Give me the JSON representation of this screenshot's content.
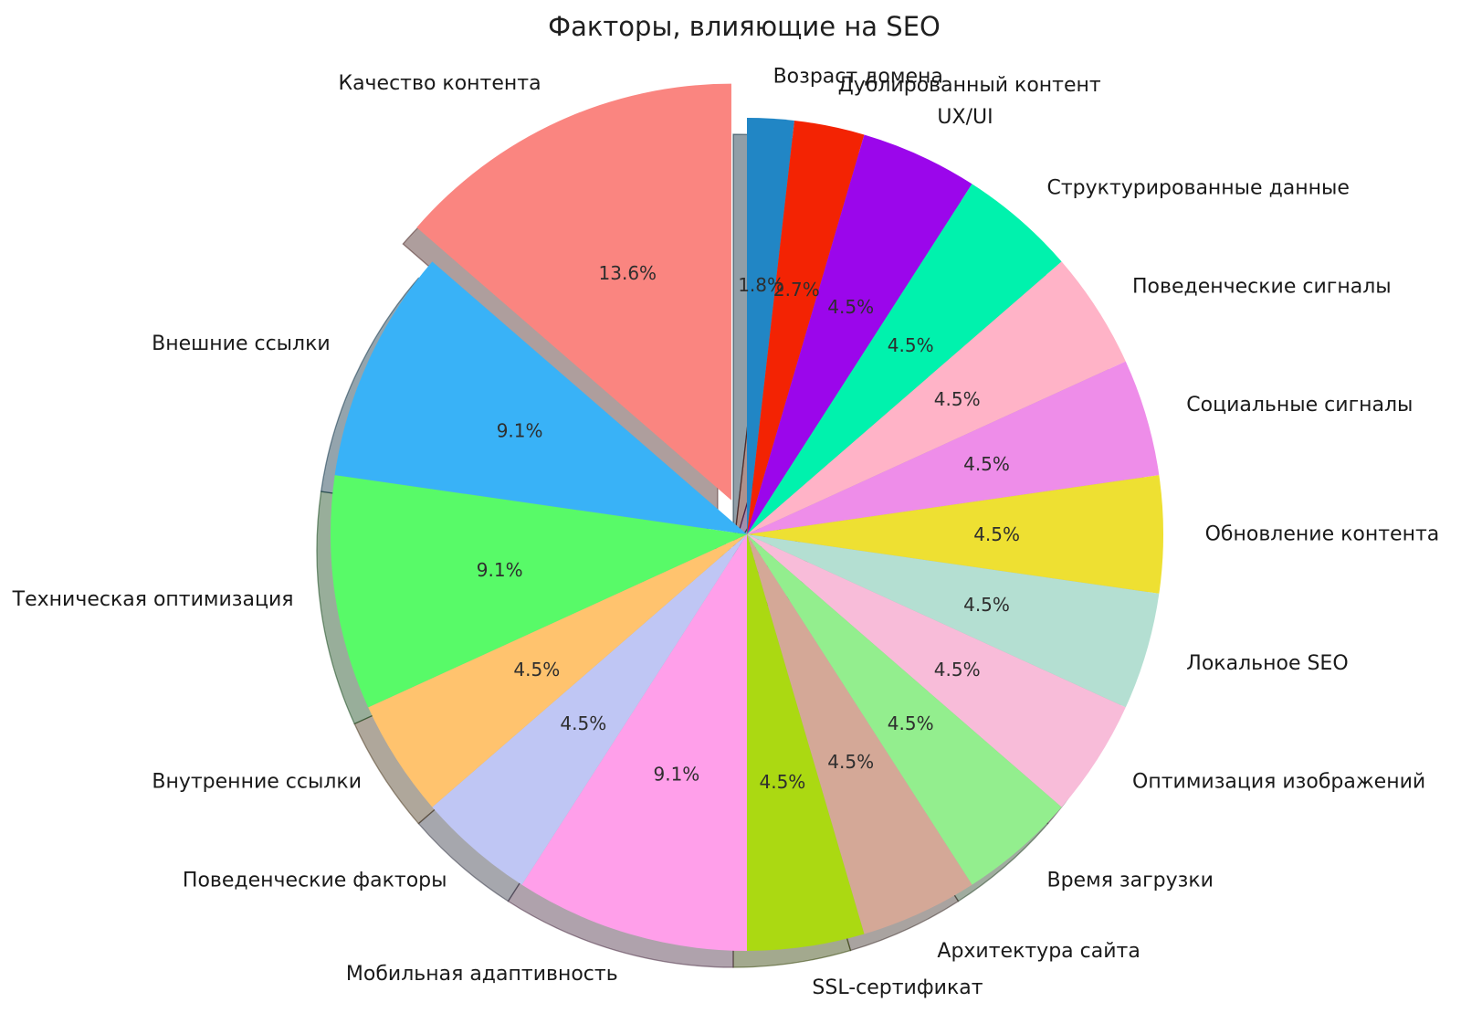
{
  "title": "Факторы, влияющие на SEO",
  "chart_data": {
    "type": "pie",
    "title": "Факторы, влияющие на SEO",
    "start_angle_deg": 90,
    "direction": "clockwise",
    "values_total": 110,
    "legend": "none",
    "percent_format": "x.x%",
    "slices": [
      {
        "label": "Возраст домена",
        "value": 2,
        "pct_label": "1.8%",
        "color": "#2186C5",
        "exploded": false
      },
      {
        "label": "Дублированный контент",
        "value": 3,
        "pct_label": "2.7%",
        "color": "#F32303",
        "exploded": false
      },
      {
        "label": "UX/UI",
        "value": 5,
        "pct_label": "4.5%",
        "color": "#9B06EB",
        "exploded": false
      },
      {
        "label": "Структурированные данные",
        "value": 5,
        "pct_label": "4.5%",
        "color": "#00F2AD",
        "exploded": false
      },
      {
        "label": "Поведенческие сигналы",
        "value": 5,
        "pct_label": "4.5%",
        "color": "#FFB3C7",
        "exploded": false
      },
      {
        "label": "Социальные сигналы",
        "value": 5,
        "pct_label": "4.5%",
        "color": "#EE8DE9",
        "exploded": false
      },
      {
        "label": "Обновление контента",
        "value": 5,
        "pct_label": "4.5%",
        "color": "#EEE032",
        "exploded": false
      },
      {
        "label": "Локальное SEO",
        "value": 5,
        "pct_label": "4.5%",
        "color": "#B4DFD2",
        "exploded": false
      },
      {
        "label": "Оптимизация изображений",
        "value": 5,
        "pct_label": "4.5%",
        "color": "#F8BCD9",
        "exploded": false
      },
      {
        "label": "Время загрузки",
        "value": 5,
        "pct_label": "4.5%",
        "color": "#93EE8E",
        "exploded": false
      },
      {
        "label": "Архитектура сайта",
        "value": 5,
        "pct_label": "4.5%",
        "color": "#D4A897",
        "exploded": false
      },
      {
        "label": "SSL-сертификат",
        "value": 5,
        "pct_label": "4.5%",
        "color": "#ABD912",
        "exploded": false
      },
      {
        "label": "Мобильная адаптивность",
        "value": 10,
        "pct_label": "9.1%",
        "color": "#FF9FEA",
        "exploded": false
      },
      {
        "label": "Поведенческие факторы",
        "value": 5,
        "pct_label": "4.5%",
        "color": "#BFC6F4",
        "exploded": false
      },
      {
        "label": "Внутренние ссылки",
        "value": 5,
        "pct_label": "4.5%",
        "color": "#FFC36E",
        "exploded": false
      },
      {
        "label": "Техническая оптимизация",
        "value": 10,
        "pct_label": "9.1%",
        "color": "#58FA68",
        "exploded": false
      },
      {
        "label": "Внешние ссылки",
        "value": 10,
        "pct_label": "9.1%",
        "color": "#39B2F7",
        "exploded": false
      },
      {
        "label": "Качество контента",
        "value": 15,
        "pct_label": "13.6%",
        "color": "#FA8580",
        "exploded": true
      }
    ],
    "style": {
      "background": "#FFFFFF",
      "label_color": "#1A1A1A",
      "percent_color": "#2E2E2E",
      "title_color": "#1F1F1F",
      "has_shadow": true
    }
  }
}
